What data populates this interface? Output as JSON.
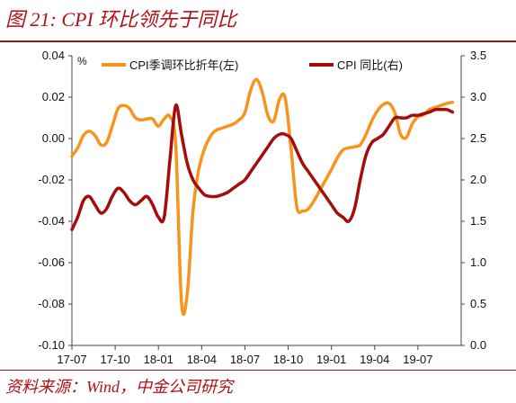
{
  "header": {
    "title": "图 21: CPI 环比领先于同比"
  },
  "footer": {
    "source": "资料来源：Wind，中金公司研究"
  },
  "chart_data": {
    "type": "line",
    "left_unit": "%",
    "left_axis": {
      "ylim": [
        -0.1,
        0.04
      ],
      "ticks": [
        0.04,
        0.02,
        0.0,
        -0.02,
        -0.04,
        -0.06,
        -0.08,
        -0.1
      ],
      "tick_labels": [
        "0.04",
        "0.02",
        "0.00",
        "-0.02",
        "-0.04",
        "-0.06",
        "-0.08",
        "-0.10"
      ]
    },
    "right_axis": {
      "ylim": [
        0.0,
        3.5
      ],
      "ticks": [
        3.5,
        3.0,
        2.5,
        2.0,
        1.5,
        1.0,
        0.5,
        0.0
      ],
      "tick_labels": [
        "3.5",
        "3.0",
        "2.5",
        "2.0",
        "1.5",
        "1.0",
        "0.5",
        "0.0"
      ]
    },
    "x_axis": {
      "range": [
        0,
        27
      ],
      "ticks": [
        0,
        3,
        6,
        9,
        12,
        15,
        18,
        21,
        24
      ],
      "tick_labels": [
        "17-07",
        "17-10",
        "18-01",
        "18-04",
        "18-07",
        "18-10",
        "19-01",
        "19-04",
        "19-07"
      ]
    },
    "legend": [
      "CPI季调环比折年(左)",
      "CPI 同比(右)"
    ],
    "series": [
      {
        "name": "CPI季调环比折年(左)",
        "axis": "left",
        "color": "#f7941d",
        "x": [
          0,
          0.4,
          0.8,
          1.2,
          1.6,
          2.0,
          2.4,
          2.8,
          3.2,
          3.6,
          4.0,
          4.4,
          4.8,
          5.2,
          5.6,
          6.0,
          6.4,
          6.8,
          7.2,
          7.6,
          8.0,
          8.4,
          8.8,
          9.2,
          9.6,
          10.0,
          10.4,
          10.8,
          11.2,
          11.6,
          12.0,
          12.4,
          12.8,
          13.2,
          13.6,
          14.0,
          14.4,
          14.8,
          15.2,
          15.6,
          16.0,
          16.4,
          16.8,
          17.2,
          17.6,
          18.0,
          18.4,
          18.8,
          19.2,
          19.6,
          20.0,
          20.4,
          20.8,
          21.2,
          21.6,
          22.0,
          22.4,
          22.8,
          23.2,
          23.6,
          24.0,
          24.4,
          24.8,
          25.2,
          25.6,
          26.0,
          26.4
        ],
        "y": [
          -0.0085,
          -0.0045,
          0.0015,
          0.0035,
          0.0015,
          -0.003,
          -0.002,
          0.006,
          0.0145,
          0.016,
          0.0145,
          0.01,
          0.009,
          0.0095,
          0.0095,
          0.006,
          0.0095,
          0.0105,
          -0.003,
          -0.079,
          -0.075,
          -0.035,
          -0.015,
          -0.005,
          0.001,
          0.004,
          0.005,
          0.006,
          0.007,
          0.009,
          0.0125,
          0.0235,
          0.0285,
          0.0225,
          0.011,
          0.0085,
          0.019,
          0.0195,
          -0.005,
          -0.033,
          -0.035,
          -0.034,
          -0.03,
          -0.025,
          -0.02,
          -0.015,
          -0.0095,
          -0.0055,
          -0.0045,
          -0.004,
          -0.003,
          0.002,
          0.0085,
          0.0135,
          0.0165,
          0.017,
          0.0125,
          0.002,
          0.0005,
          0.007,
          0.0105,
          0.0115,
          0.014,
          0.015,
          0.016,
          0.017,
          0.0175
        ]
      },
      {
        "name": "CPI 同比(右)",
        "axis": "right",
        "color": "#a50d0d",
        "x": [
          0,
          0.4,
          0.8,
          1.2,
          1.6,
          2.0,
          2.4,
          2.8,
          3.2,
          3.6,
          4.0,
          4.4,
          4.8,
          5.2,
          5.6,
          6.0,
          6.4,
          6.8,
          7.2,
          7.6,
          8.0,
          8.4,
          8.8,
          9.2,
          9.6,
          10.0,
          10.4,
          10.8,
          11.2,
          11.6,
          12.0,
          12.4,
          12.8,
          13.2,
          13.6,
          14.0,
          14.4,
          14.8,
          15.2,
          15.6,
          16.0,
          16.4,
          16.8,
          17.2,
          17.6,
          18.0,
          18.4,
          18.8,
          19.2,
          19.6,
          20.0,
          20.4,
          20.8,
          21.2,
          21.6,
          22.0,
          22.4,
          22.8,
          23.2,
          23.6,
          24.0,
          24.4,
          24.8,
          25.2,
          25.6,
          26.0,
          26.4
        ],
        "y": [
          1.4,
          1.55,
          1.75,
          1.8,
          1.7,
          1.6,
          1.65,
          1.8,
          1.9,
          1.85,
          1.75,
          1.7,
          1.75,
          1.8,
          1.7,
          1.55,
          1.55,
          2.25,
          2.9,
          2.55,
          2.2,
          2.0,
          1.9,
          1.82,
          1.8,
          1.8,
          1.82,
          1.85,
          1.9,
          1.95,
          2.0,
          2.1,
          2.2,
          2.3,
          2.4,
          2.5,
          2.55,
          2.55,
          2.5,
          2.35,
          2.2,
          2.1,
          2.0,
          1.9,
          1.8,
          1.7,
          1.6,
          1.55,
          1.5,
          1.65,
          2.0,
          2.3,
          2.45,
          2.5,
          2.55,
          2.65,
          2.75,
          2.75,
          2.75,
          2.78,
          2.78,
          2.8,
          2.82,
          2.85,
          2.85,
          2.85,
          2.82
        ]
      }
    ]
  }
}
